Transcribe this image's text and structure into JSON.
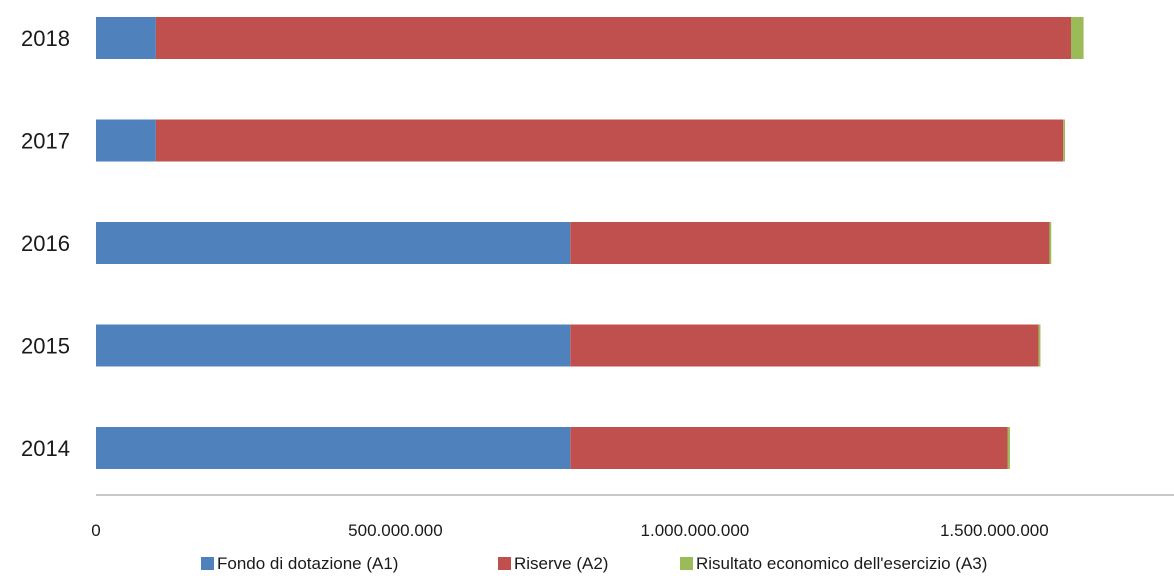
{
  "chart_data": {
    "type": "bar",
    "orientation": "horizontal",
    "stacked": true,
    "categories": [
      "2018",
      "2017",
      "2016",
      "2015",
      "2014"
    ],
    "series": [
      {
        "name": "Fondo di dotazione (A1)",
        "color": "#4F81BD",
        "values": [
          100000000,
          100000000,
          792000000,
          792000000,
          792000000
        ]
      },
      {
        "name": "Riserve (A2)",
        "color": "#C0504D",
        "values": [
          1528000000,
          1515000000,
          800000000,
          782000000,
          730000000
        ]
      },
      {
        "name": "Risultato economico dell'esercizio (A3)",
        "color": "#9BBB59",
        "values": [
          21000000,
          3000000,
          3000000,
          3000000,
          4000000
        ]
      }
    ],
    "xlim": [
      0,
      1800000000
    ],
    "x_ticks": [
      0,
      500000000,
      1000000000,
      1500000000
    ],
    "x_tick_labels": [
      "0",
      "500.000.000",
      "1.000.000.000",
      "1.500.000.000"
    ],
    "grid": false,
    "legend_position": "bottom"
  }
}
